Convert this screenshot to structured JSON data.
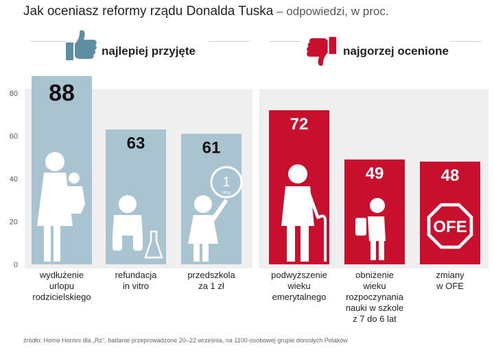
{
  "title": {
    "main": "Jak oceniasz reformy rządu Donalda Tuska",
    "sub": " – odpowiedzi, w proc."
  },
  "sections": {
    "best": {
      "label": "najlepiej przyjęte",
      "icon": "thumbs-up-icon",
      "color": "#5f8ea3"
    },
    "worst": {
      "label": "najgorzej ocenione",
      "icon": "thumbs-down-icon",
      "color": "#c8102e"
    }
  },
  "colors": {
    "positive_bar": "#a9c4d0",
    "negative_bar": "#c8102e",
    "section_bg": "#efefef"
  },
  "chart_data": {
    "type": "bar",
    "title": "Jak oceniasz reformy rządu Donalda Tuska – odpowiedzi, w proc.",
    "ylim": [
      0,
      80
    ],
    "yticks": [
      0,
      20,
      40,
      60,
      80
    ],
    "grid": false,
    "categories": [
      "wydłużenie urlopu rodzicielskiego",
      "refundacja in vitro",
      "przedszkola za 1 zł",
      "podwyższenie wieku emerytalnego",
      "obniżenie wieku rozpoczynania nauki w szkole z 7 do 6 lat",
      "zmiany w OFE"
    ],
    "category_lines": [
      [
        "wydłużenie",
        "urlopu",
        "rodzicielskiego"
      ],
      [
        "refundacja",
        "in vitro"
      ],
      [
        "przedszkola",
        "za 1 zł"
      ],
      [
        "podwyższenie",
        "wieku",
        "emerytalnego"
      ],
      [
        "obniżenie",
        "wieku",
        "rozpoczynania",
        "nauki w szkole",
        "z 7 do 6 lat"
      ],
      [
        "zmiany",
        "w OFE"
      ]
    ],
    "series": [
      {
        "name": "",
        "values": [
          88,
          63,
          61,
          72,
          49,
          48
        ]
      }
    ],
    "groups": [
      "best",
      "best",
      "best",
      "worst",
      "worst",
      "worst"
    ],
    "icons": [
      "mother-child-icon",
      "baby-flask-icon",
      "child-coin-icon",
      "elderly-cane-icon",
      "schoolchild-icon",
      "ofe-stop-sign-icon"
    ],
    "annotations": {
      "coin_number": "1",
      "coin_word": "złoty",
      "ofe_sign": "OFE"
    }
  },
  "source": "źródło: Homo Homini dla „Rz\", badanie przeprowadzone 20–22 września, na 1100-osobowej grupie dorosłych Polaków"
}
